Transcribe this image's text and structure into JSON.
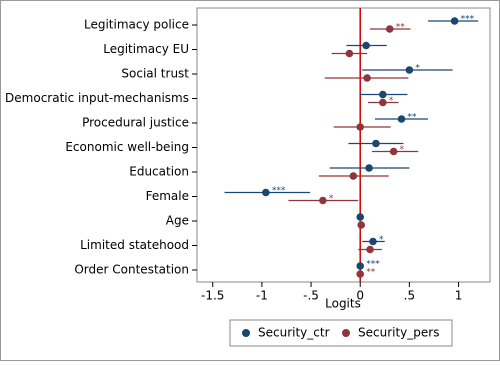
{
  "chart_data": {
    "type": "coefplot",
    "x_label": "Logits",
    "categories": [
      "Legitimacy police",
      "Legitimacy EU",
      "Social trust",
      "Democratic input-mechanisms",
      "Procedural justice",
      "Economic well-being",
      "Education",
      "Female",
      "Age",
      "Limited statehood",
      "Order Contestation"
    ],
    "series": [
      {
        "name": "Security_ctr",
        "color": "#1a476f",
        "values": [
          0.96,
          0.06,
          0.5,
          0.23,
          0.42,
          0.16,
          0.09,
          -0.96,
          0.0,
          0.13,
          0.0
        ],
        "lower": [
          0.69,
          -0.14,
          0.02,
          0.0,
          0.15,
          -0.12,
          -0.31,
          -1.38,
          -0.01,
          0.02,
          -0.01
        ],
        "upper": [
          1.2,
          0.27,
          0.94,
          0.48,
          0.69,
          0.44,
          0.5,
          -0.51,
          0.01,
          0.25,
          0.01
        ],
        "labels": [
          "***",
          null,
          "*",
          null,
          "**",
          null,
          null,
          "***",
          null,
          "*",
          "***"
        ]
      },
      {
        "name": "Security_pers",
        "color": "#90353b",
        "values": [
          0.3,
          -0.11,
          0.07,
          0.23,
          0.0,
          0.34,
          -0.07,
          -0.38,
          0.01,
          0.1,
          0.0
        ],
        "lower": [
          0.1,
          -0.29,
          -0.36,
          0.08,
          -0.27,
          0.12,
          -0.42,
          -0.73,
          0.0,
          -0.02,
          -0.01
        ],
        "upper": [
          0.51,
          0.07,
          0.49,
          0.39,
          0.31,
          0.59,
          0.29,
          -0.02,
          0.02,
          0.22,
          0.01
        ],
        "labels": [
          "**",
          null,
          null,
          "*",
          null,
          "*",
          null,
          "*",
          null,
          null,
          "**"
        ]
      }
    ],
    "xlim": [
      -1.66,
      1.32
    ],
    "xticks": [
      -1.5,
      -1,
      {
        "value": -0.5,
        "label": "-.5"
      },
      0,
      {
        "value": 0.5,
        "label": ".5"
      },
      1
    ],
    "refline": 0,
    "refline_color": "#cc0000"
  }
}
